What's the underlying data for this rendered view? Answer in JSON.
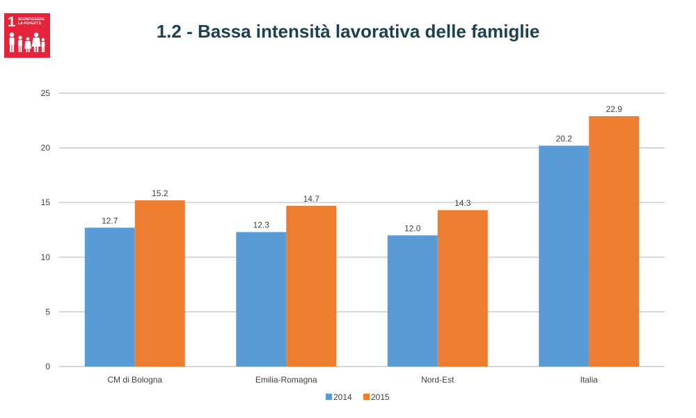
{
  "header": {
    "badge_number": "1",
    "badge_text_line1": "SCONFIGGERE",
    "badge_text_line2": "LA POVERTÀ",
    "title": "1.2 - Bassa intensità lavorativa delle famiglie"
  },
  "colors": {
    "badge": "#e5243b",
    "title": "#1b4152",
    "series_2014": "#5b9bd5",
    "series_2015": "#ed7d31",
    "grid": "#bfbfbf"
  },
  "chart_data": {
    "type": "bar",
    "categories": [
      "CM di Bologna",
      "Emilia-Romagna",
      "Nord-Est",
      "Italia"
    ],
    "series": [
      {
        "name": "2014",
        "values": [
          12.7,
          12.3,
          12.0,
          20.2
        ],
        "color": "#5b9bd5"
      },
      {
        "name": "2015",
        "values": [
          15.2,
          14.7,
          14.3,
          22.9
        ],
        "color": "#ed7d31"
      }
    ],
    "data_labels": [
      [
        "12.7",
        "12.3",
        "12.0",
        "20.2"
      ],
      [
        "15.2",
        "14.7",
        "14.3",
        "22.9"
      ]
    ],
    "ylim": [
      0,
      25
    ],
    "yticks": [
      0,
      5,
      10,
      15,
      20,
      25
    ],
    "ytick_labels": [
      "0",
      "5",
      "10",
      "15",
      "20",
      "25"
    ],
    "grid": true,
    "legend_position": "bottom-center",
    "title": "",
    "xlabel": "",
    "ylabel": ""
  }
}
